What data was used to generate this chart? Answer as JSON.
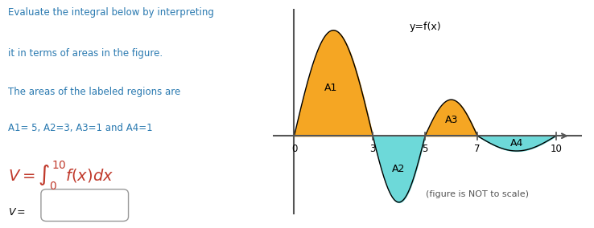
{
  "text_lines": [
    "Evaluate the integral below by interpreting",
    "it in terms of areas in the figure.",
    "The areas of the labeled regions are",
    "A1= 5, A2=3, A3=1 and A4=1"
  ],
  "text_color_blue": "#2979B0",
  "text_color_black": "#000000",
  "fig_label": "y=f(x)",
  "region_labels": [
    "A1",
    "A2",
    "A3",
    "A4"
  ],
  "x_ticks": [
    0,
    3,
    5,
    7,
    10
  ],
  "color_above": "#F5A623",
  "color_below": "#6DD9D9",
  "not_to_scale": "(figure is NOT to scale)",
  "background": "#FFFFFF",
  "integral_color": "#C0392B",
  "axis_color": "#555555"
}
